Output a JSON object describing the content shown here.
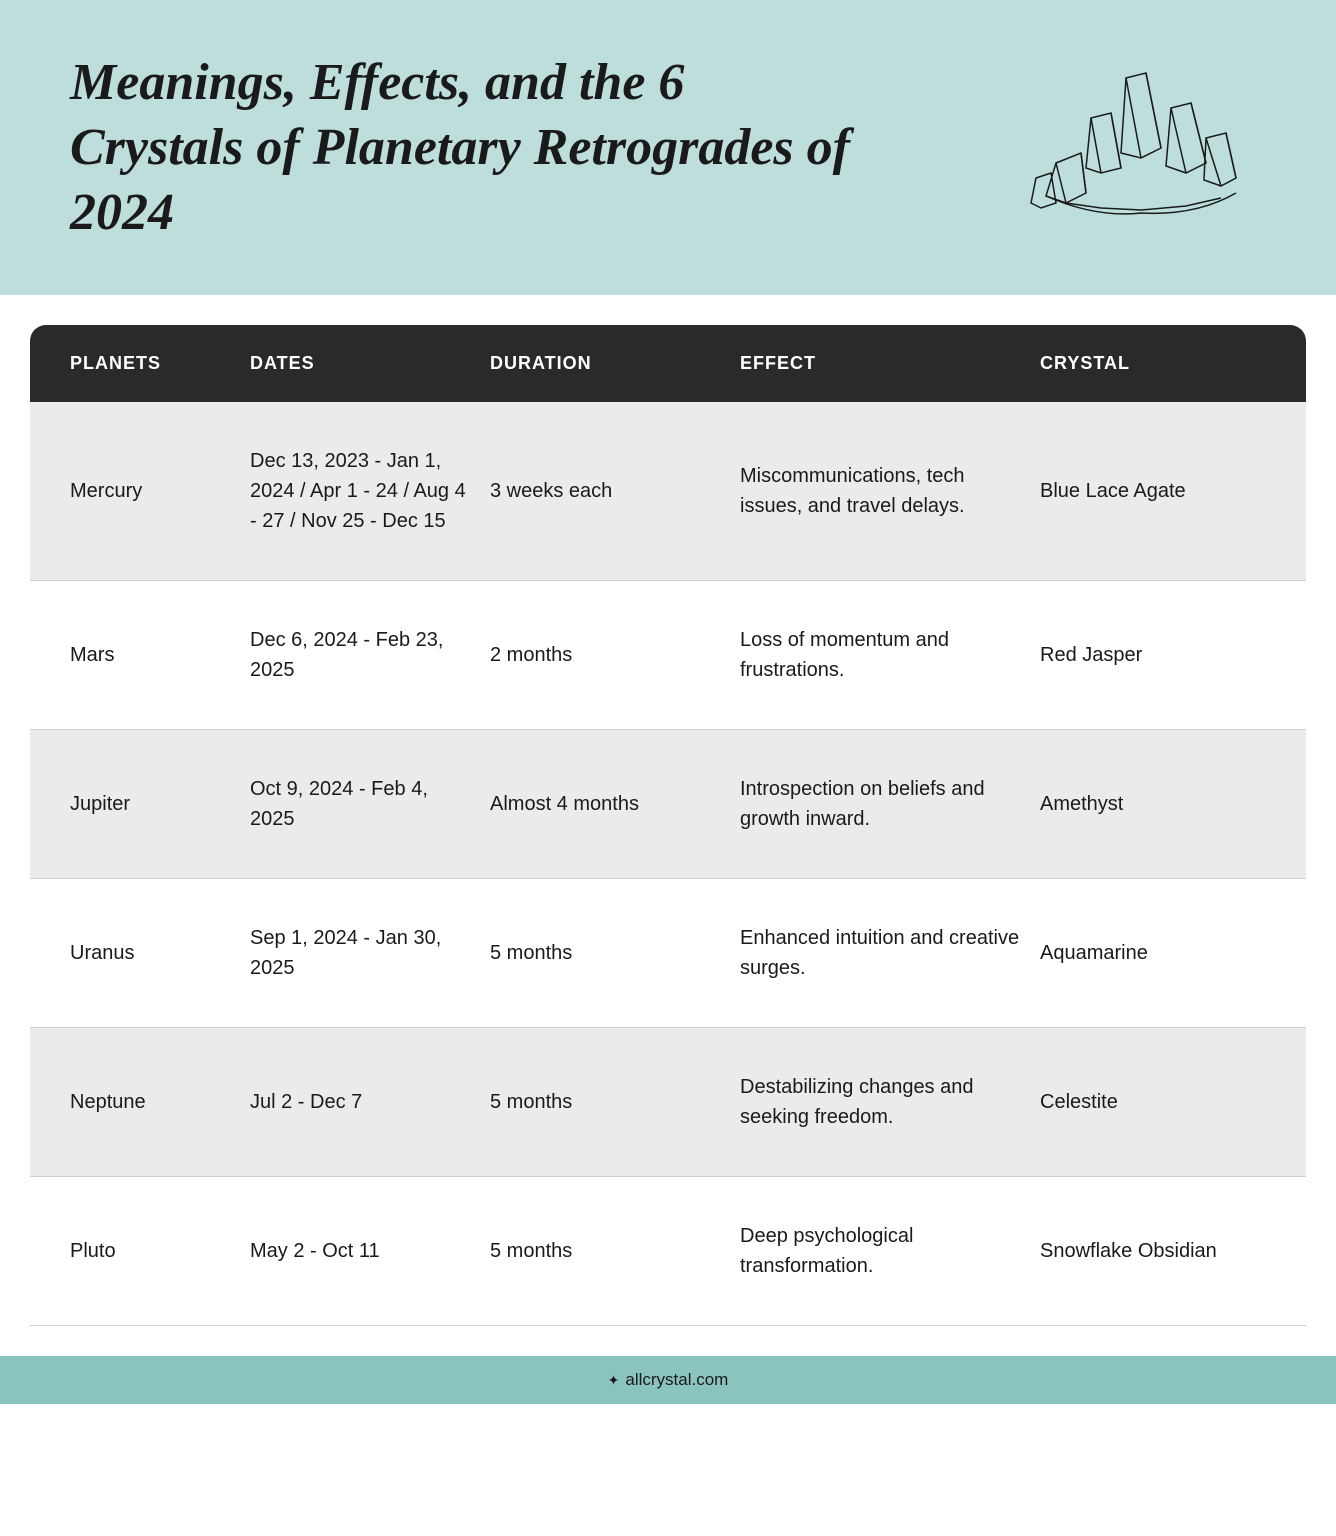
{
  "header": {
    "title": "Meanings, Effects, and the 6 Crystals of Planetary Retrogrades of 2024"
  },
  "table": {
    "columns": [
      "PLANETS",
      "DATES",
      "DURATION",
      "EFFECT",
      "CRYSTAL"
    ],
    "rows": [
      {
        "planet": "Mercury",
        "dates": "Dec 13, 2023 - Jan 1, 2024 / Apr 1 - 24 / Aug 4 - 27 / Nov 25 - Dec 15",
        "duration": "3 weeks each",
        "effect": "Miscommunications, tech issues, and travel delays.",
        "crystal": "Blue Lace Agate",
        "alt": true
      },
      {
        "planet": "Mars",
        "dates": "Dec 6, 2024 - Feb 23, 2025",
        "duration": "2 months",
        "effect": "Loss of momentum and frustrations.",
        "crystal": "Red Jasper",
        "alt": false
      },
      {
        "planet": "Jupiter",
        "dates": "Oct 9, 2024 - Feb 4, 2025",
        "duration": "Almost 4 months",
        "effect": "Introspection on beliefs and growth inward.",
        "crystal": "Amethyst",
        "alt": true
      },
      {
        "planet": "Uranus",
        "dates": "Sep 1, 2024 - Jan 30, 2025",
        "duration": "5 months",
        "effect": "Enhanced intuition and creative surges.",
        "crystal": "Aquamarine",
        "alt": false
      },
      {
        "planet": "Neptune",
        "dates": "Jul 2 - Dec 7",
        "duration": "5 months",
        "effect": "Destabilizing changes and seeking freedom.",
        "crystal": "Celestite",
        "alt": true
      },
      {
        "planet": "Pluto",
        "dates": "May 2 - Oct 11",
        "duration": "5 months",
        "effect": "Deep psychological transformation.",
        "crystal": "Snowflake Obsidian",
        "alt": false
      }
    ]
  },
  "footer": {
    "text": "allcrystal.com"
  },
  "colors": {
    "header_bg": "#bddedb",
    "table_header_bg": "#2a2a2a",
    "alt_row_bg": "#ebebeb",
    "footer_bg": "#8ac4bf",
    "text": "#1a1a1a",
    "border": "#d0d0d0"
  }
}
